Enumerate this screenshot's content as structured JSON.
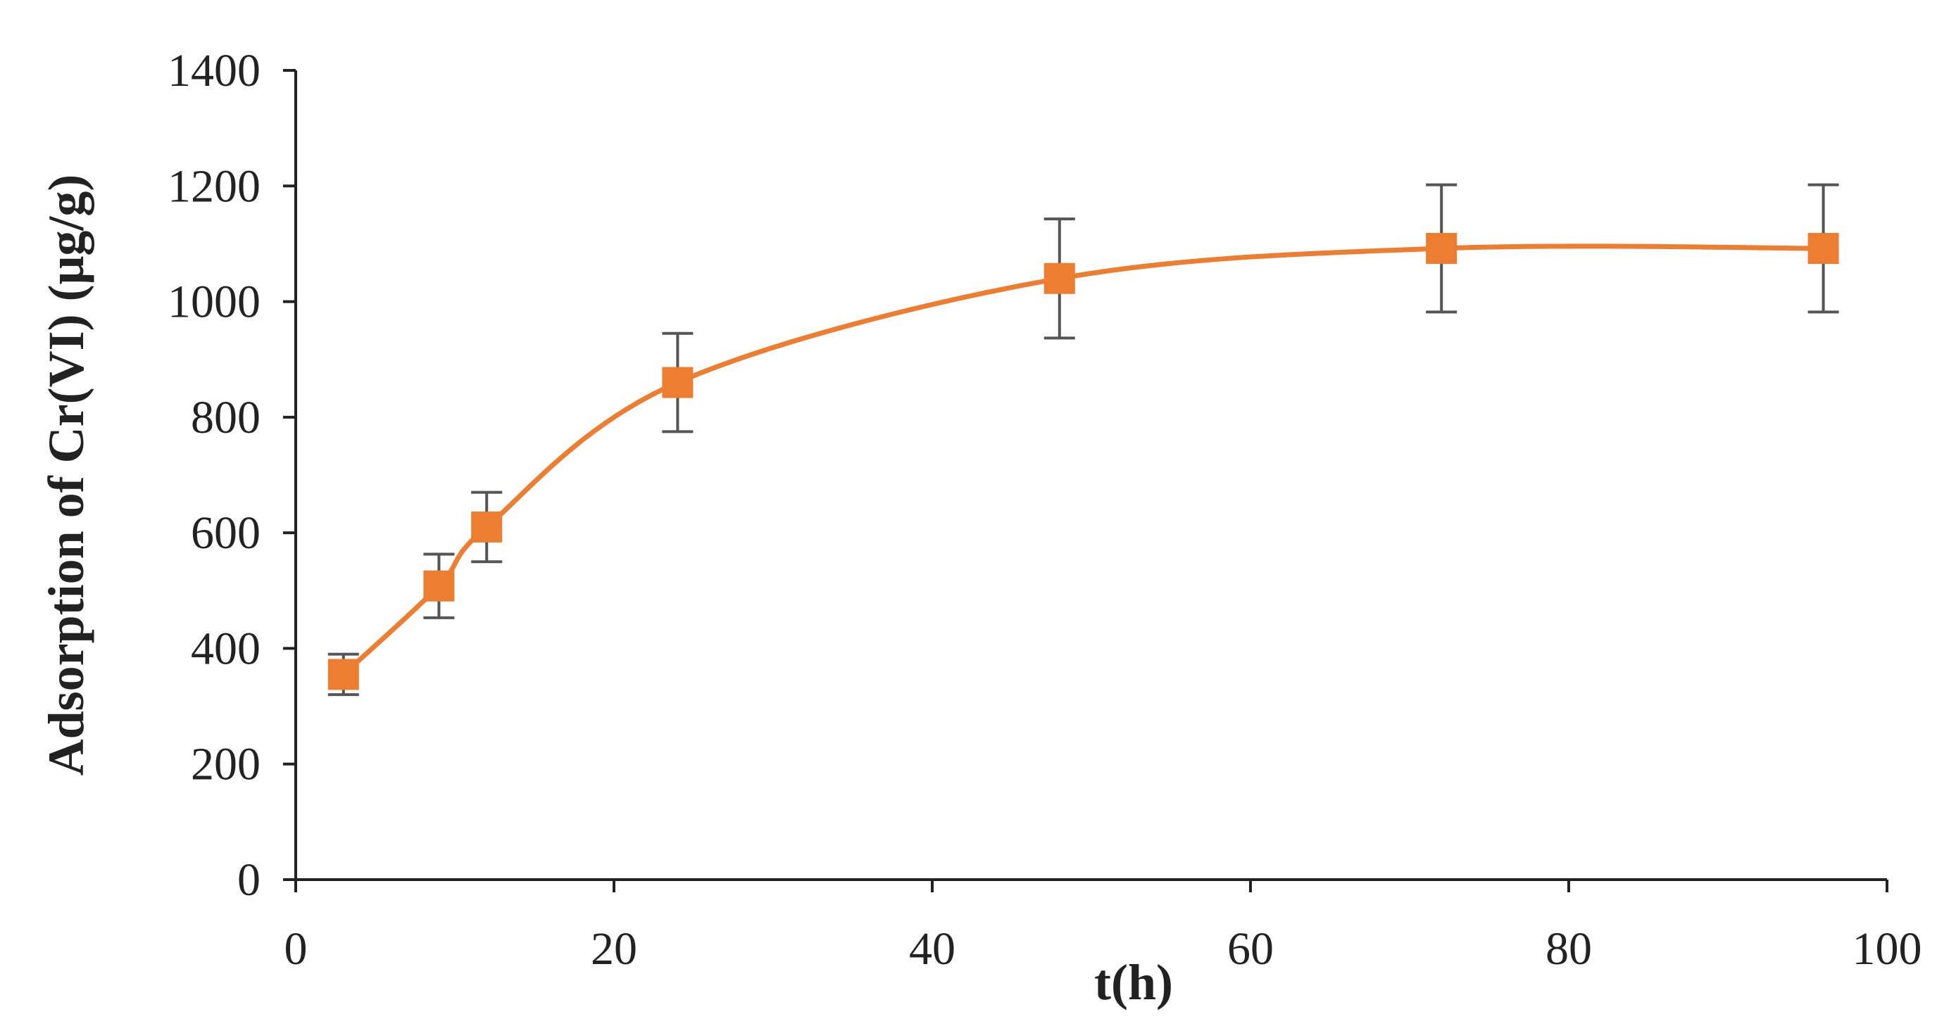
{
  "chart_data": {
    "type": "line",
    "title": "",
    "xlabel": "t(h)",
    "ylabel": "Adsorption of Cr(VI) (μg/g)",
    "xlim": [
      0,
      100
    ],
    "ylim": [
      0,
      1400
    ],
    "xticks": [
      0,
      20,
      40,
      60,
      80,
      100
    ],
    "yticks": [
      0,
      200,
      400,
      600,
      800,
      1000,
      1200,
      1400
    ],
    "grid": false,
    "legend": "none",
    "series": [
      {
        "color": "#ed7d31",
        "marker": "square",
        "smooth": true,
        "x": [
          3,
          9,
          12,
          24,
          48,
          72,
          96
        ],
        "y": [
          355,
          508,
          610,
          860,
          1040,
          1092,
          1092
        ],
        "error": [
          35,
          55,
          60,
          85,
          103,
          110,
          110
        ]
      }
    ],
    "error_bar_color": "#555555"
  }
}
